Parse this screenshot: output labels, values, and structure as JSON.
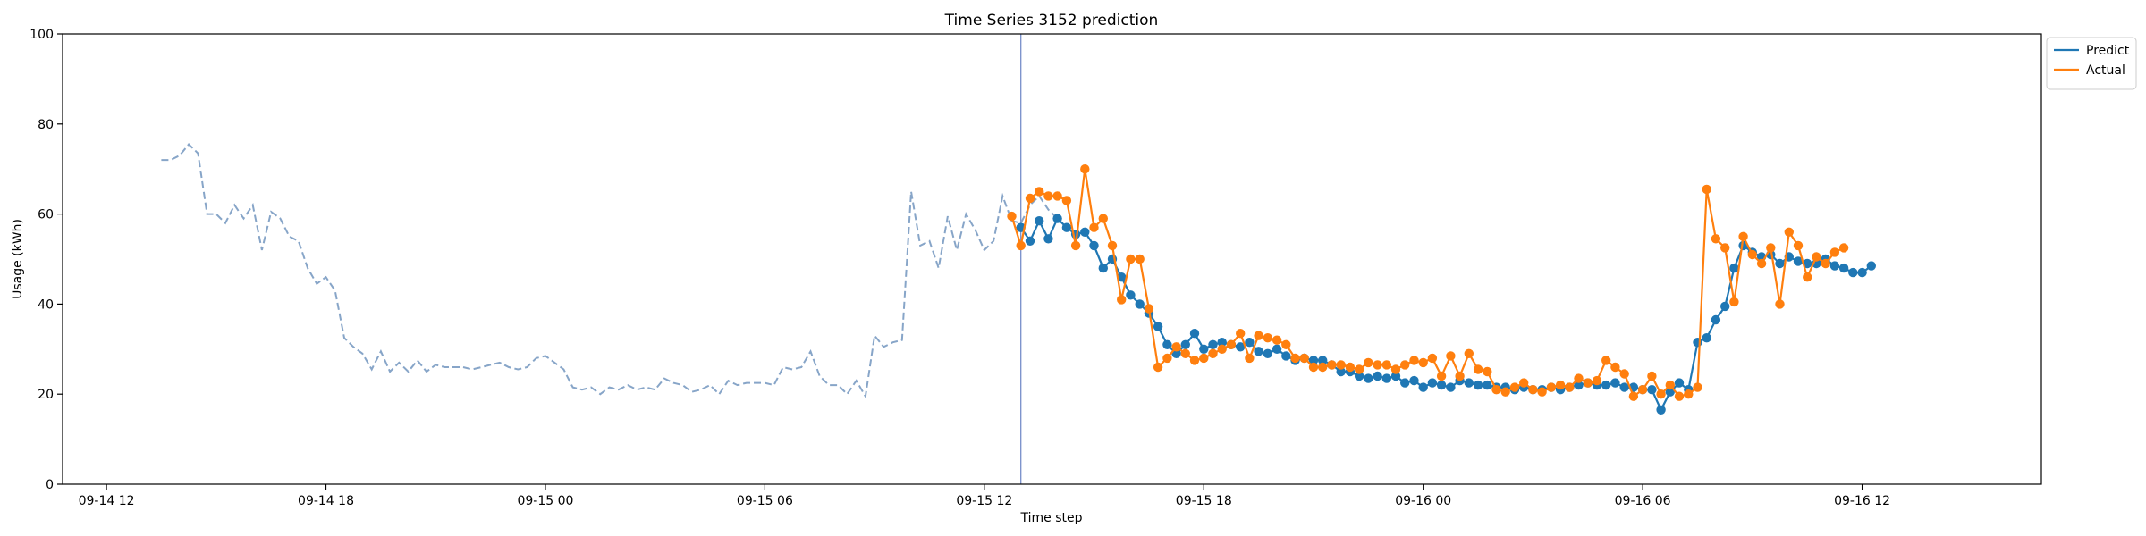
{
  "chart_data": {
    "type": "line",
    "title": "Time Series 3152 prediction",
    "xlabel": "Time step",
    "ylabel": "Usage (kWh)",
    "ylim": [
      0,
      100
    ],
    "yticks": [
      0,
      20,
      40,
      60,
      80,
      100
    ],
    "xlim_hours": [
      -1.2,
      52.9
    ],
    "xticks": [
      {
        "h": 0,
        "label": "09-14 12"
      },
      {
        "h": 6,
        "label": "09-14 18"
      },
      {
        "h": 12,
        "label": "09-15 00"
      },
      {
        "h": 18,
        "label": "09-15 06"
      },
      {
        "h": 24,
        "label": "09-15 12"
      },
      {
        "h": 30,
        "label": "09-15 18"
      },
      {
        "h": 36,
        "label": "09-16 00"
      },
      {
        "h": 42,
        "label": "09-16 06"
      },
      {
        "h": 48,
        "label": "09-16 12"
      }
    ],
    "legend_position": "upper-right-outside",
    "forecast_start_hour": 25,
    "step_hours": 0.25,
    "history": {
      "start_hour": 1.5,
      "color": "#87a5c8",
      "values": [
        72,
        72,
        73,
        75.5,
        73.5,
        60,
        60,
        58,
        62,
        59,
        62,
        52,
        60.5,
        59,
        55,
        54,
        48,
        44.5,
        46,
        43,
        32.5,
        30.5,
        29,
        25.5,
        29.5,
        25,
        27,
        25,
        27.5,
        25,
        26.5,
        26,
        26,
        26,
        25.5,
        26,
        26.5,
        27,
        26,
        25.5,
        26,
        28,
        28.5,
        27,
        25.5,
        21.5,
        21,
        21.5,
        20,
        21.5,
        21,
        22,
        21,
        21.5,
        21,
        23.5,
        22.5,
        22,
        20.5,
        21,
        22,
        20,
        23,
        22,
        22.5,
        22.5,
        22.5,
        22,
        26,
        25.5,
        26,
        29.5,
        24,
        22,
        22,
        20,
        23,
        19.5,
        33,
        30.5,
        31.5,
        32,
        65,
        53,
        54,
        48,
        59.5,
        52,
        60,
        56.5,
        52,
        54,
        64,
        58.5,
        58,
        62,
        64,
        61,
        59
      ]
    },
    "series": [
      {
        "name": "Predict",
        "color": "#1f77b4",
        "start_hour": 25,
        "values": [
          57,
          54,
          58.5,
          54.5,
          59,
          57,
          55.5,
          56,
          53,
          48,
          50,
          46,
          42,
          40,
          38,
          35,
          31,
          29,
          31,
          33.5,
          30,
          31,
          31.5,
          31,
          30.5,
          31.5,
          29.5,
          29,
          30,
          28.5,
          27.5,
          28,
          27.5,
          27.5,
          26.5,
          25,
          25,
          24,
          23.5,
          24,
          23.5,
          24,
          22.5,
          23,
          21.5,
          22.5,
          22,
          21.5,
          23,
          22.5,
          22,
          22,
          21.5,
          21.5,
          21,
          21.5,
          21,
          21,
          21.5,
          21,
          21.5,
          22,
          22.5,
          22,
          22,
          22.5,
          21.5,
          21.5,
          21,
          21,
          16.5,
          20.5,
          22.5,
          21,
          31.5,
          32.5,
          36.5,
          39.5,
          48,
          53,
          51.5,
          50.5,
          51,
          49,
          50.5,
          49.5,
          49,
          49,
          50,
          48.5,
          48,
          47,
          47,
          48.5
        ]
      },
      {
        "name": "Actual",
        "color": "#ff7f0e",
        "start_hour": 24.75,
        "values": [
          59.5,
          53,
          63.5,
          65,
          64,
          64,
          63,
          53,
          70,
          57,
          59,
          53,
          41,
          50,
          50,
          39,
          26,
          28,
          30.5,
          29,
          27.5,
          28,
          29,
          30,
          31,
          33.5,
          28,
          33,
          32.5,
          32,
          31,
          28,
          28,
          26,
          26,
          26.5,
          26.5,
          26,
          25.5,
          27,
          26.5,
          26.5,
          25.5,
          26.5,
          27.5,
          27,
          28,
          24,
          28.5,
          24,
          29,
          25.5,
          25,
          21,
          20.5,
          21.5,
          22.5,
          21,
          20.5,
          21.5,
          22,
          21.5,
          23.5,
          22.5,
          23,
          27.5,
          26,
          24.5,
          19.5,
          21,
          24,
          20,
          22,
          19.5,
          20,
          21.5,
          65.5,
          54.5,
          52.5,
          40.5,
          55,
          51,
          49,
          52.5,
          40,
          56,
          53,
          46,
          50.5,
          49,
          51.5,
          52.5
        ]
      }
    ]
  }
}
